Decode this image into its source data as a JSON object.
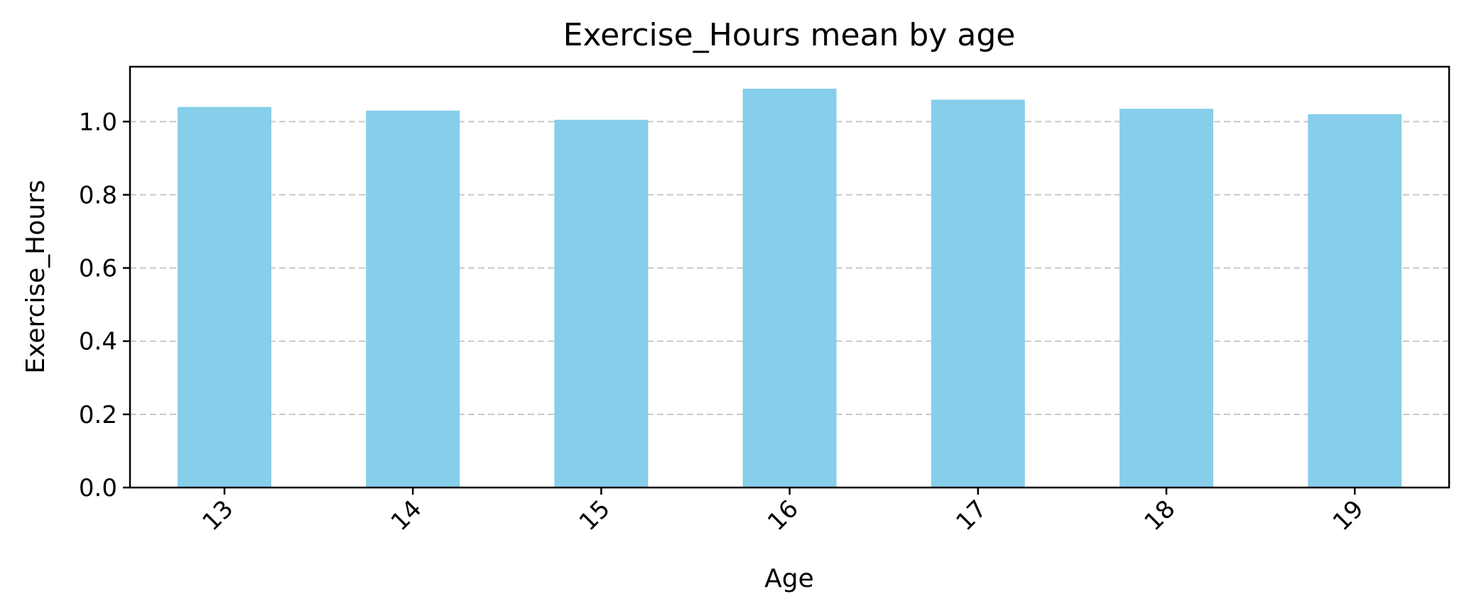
{
  "chart_data": {
    "type": "bar",
    "title": "Exercise_Hours mean by age",
    "xlabel": "Age",
    "ylabel": "Exercise_Hours",
    "categories": [
      "13",
      "14",
      "15",
      "16",
      "17",
      "18",
      "19"
    ],
    "values": [
      1.04,
      1.03,
      1.005,
      1.09,
      1.06,
      1.035,
      1.02
    ],
    "ylim": [
      0,
      1.15
    ],
    "yticks": [
      "0.0",
      "0.2",
      "0.4",
      "0.6",
      "0.8",
      "1.0"
    ],
    "grid": "y, dashed",
    "bar_color": "#87CEEB",
    "grid_color": "#c8c8c8"
  }
}
